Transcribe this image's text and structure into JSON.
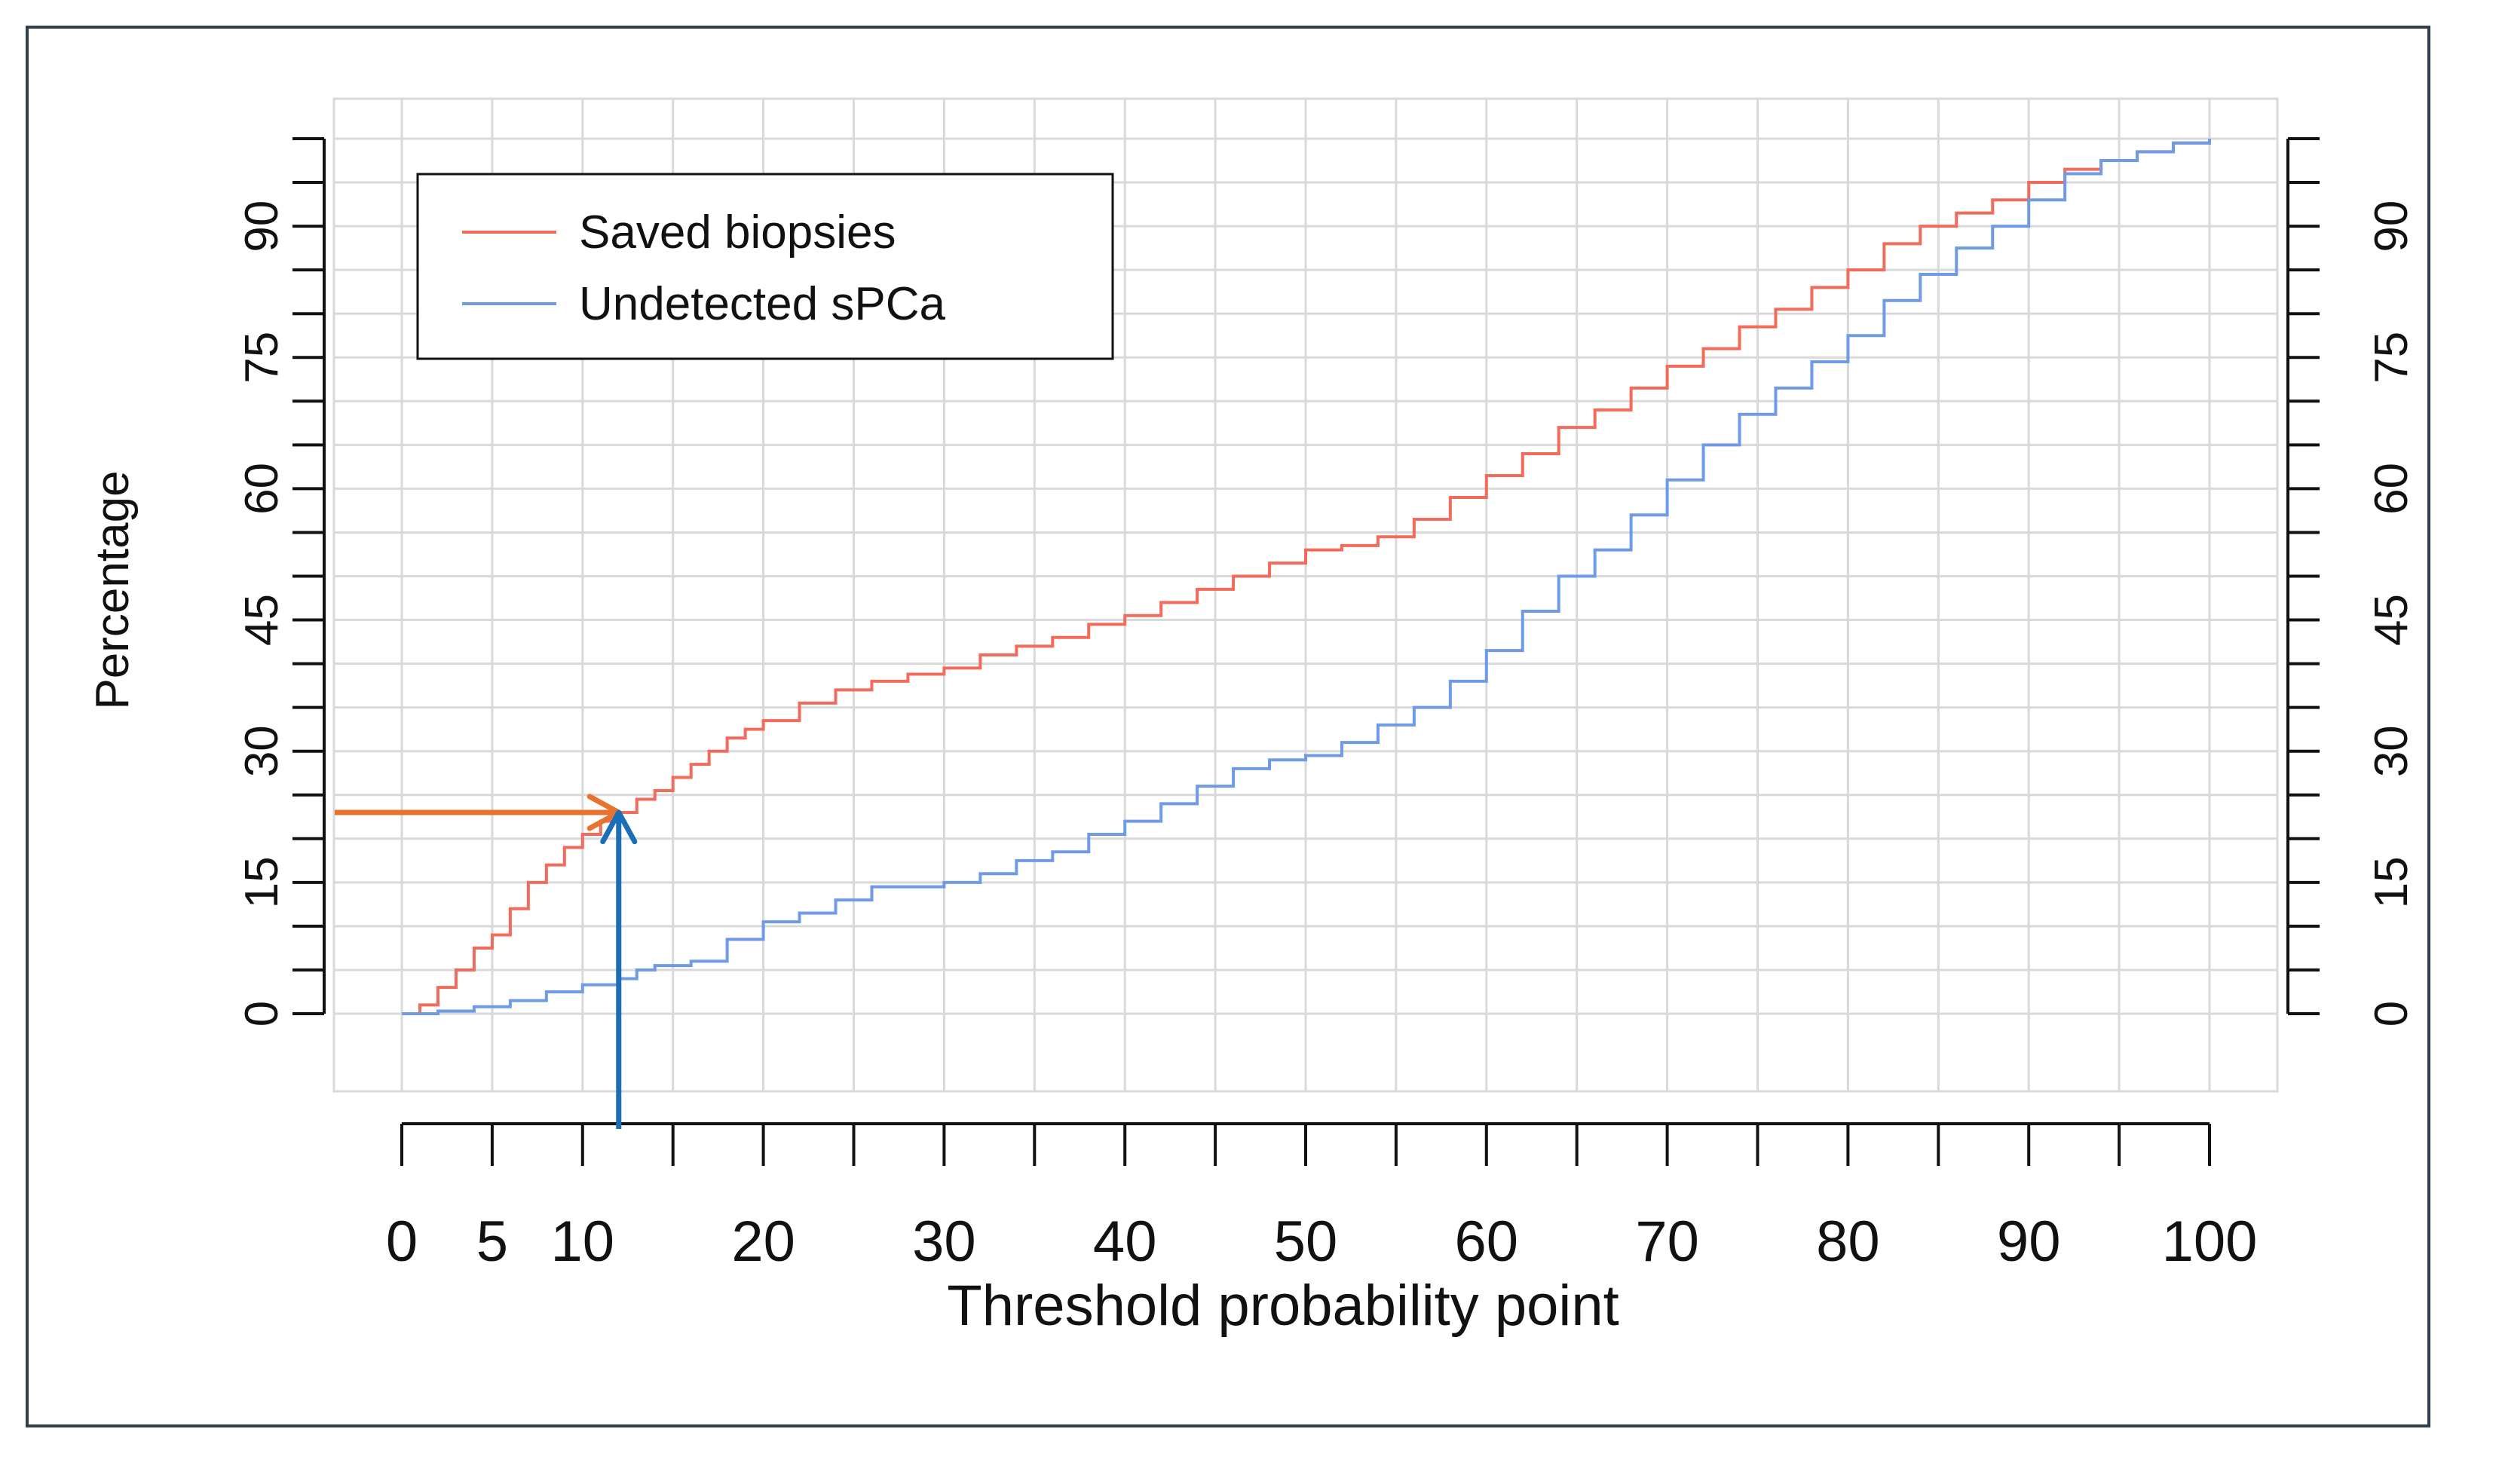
{
  "chart_data": {
    "type": "line",
    "title": "",
    "xlabel": "Threshold probability point",
    "ylabel": "Percentage",
    "xlim": [
      -4,
      104
    ],
    "ylim": [
      -9,
      100
    ],
    "grid": true,
    "legend_position": "top-left",
    "x_ticks": [
      0,
      5,
      10,
      20,
      30,
      40,
      50,
      60,
      70,
      80,
      90,
      100
    ],
    "x_minor_ticks": [
      0,
      5,
      10,
      15,
      20,
      25,
      30,
      35,
      40,
      45,
      50,
      55,
      60,
      65,
      70,
      75,
      80,
      85,
      90,
      95,
      100
    ],
    "y_ticks": [
      0,
      15,
      30,
      45,
      60,
      75,
      90
    ],
    "y_minor_step": 5,
    "y_axis_max": 100,
    "series": [
      {
        "name": "Saved biopsies",
        "color": "#f26b5b",
        "x": [
          0,
          1,
          2,
          3,
          4,
          5,
          6,
          7,
          8,
          9,
          10,
          11,
          12,
          13,
          14,
          15,
          16,
          17,
          18,
          19,
          20,
          22,
          24,
          26,
          28,
          30,
          32,
          34,
          36,
          38,
          40,
          42,
          44,
          46,
          48,
          50,
          52,
          54,
          56,
          58,
          60,
          62,
          64,
          66,
          68,
          70,
          72,
          74,
          76,
          78,
          80,
          82,
          84,
          86,
          88,
          90,
          92,
          94,
          96,
          98,
          100
        ],
        "y": [
          0,
          1,
          3,
          5,
          7.5,
          9,
          12,
          15,
          17,
          19,
          20.5,
          22,
          23,
          24.5,
          25.5,
          27,
          28.5,
          30,
          31.5,
          32.5,
          33.5,
          35.5,
          37,
          38,
          38.8,
          39.5,
          41,
          42,
          43,
          44.5,
          45.5,
          47,
          48.5,
          50,
          51.5,
          53,
          53.5,
          54.5,
          56.5,
          59,
          61.5,
          64,
          67,
          69,
          71.5,
          74,
          76,
          78.5,
          80.5,
          83,
          85,
          88,
          90,
          91.5,
          93,
          95,
          96.5,
          97.5,
          98.5,
          99.5,
          100
        ]
      },
      {
        "name": "Undetected sPCa",
        "color": "#6f9be6",
        "x": [
          0,
          2,
          4,
          6,
          8,
          10,
          12,
          13,
          14,
          16,
          18,
          20,
          22,
          24,
          26,
          28,
          30,
          32,
          34,
          36,
          38,
          40,
          42,
          44,
          46,
          48,
          50,
          52,
          54,
          56,
          58,
          60,
          62,
          64,
          66,
          68,
          70,
          72,
          74,
          76,
          78,
          80,
          82,
          84,
          86,
          88,
          90,
          92,
          94,
          96,
          98,
          100
        ],
        "y": [
          0,
          0.3,
          0.8,
          1.5,
          2.5,
          3.3,
          4,
          5,
          5.5,
          6,
          8.5,
          10.5,
          11.5,
          13,
          14.5,
          14.5,
          15,
          16,
          17.5,
          18.5,
          20.5,
          22,
          24,
          26,
          28,
          29,
          29.5,
          31,
          33,
          35,
          38,
          41.5,
          46,
          50,
          53,
          57,
          61,
          65,
          68.5,
          71.5,
          74.5,
          77.5,
          81.5,
          84.5,
          87.5,
          90,
          93,
          96,
          97.5,
          98.5,
          99.5,
          100
        ]
      }
    ],
    "annotations": [
      {
        "type": "arrow",
        "color": "#e8732f",
        "from": [
          -4,
          23
        ],
        "to": [
          12,
          23
        ]
      },
      {
        "type": "arrow",
        "color": "#1a6eb5",
        "from": [
          12,
          -9
        ],
        "to": [
          12,
          23
        ]
      }
    ]
  }
}
